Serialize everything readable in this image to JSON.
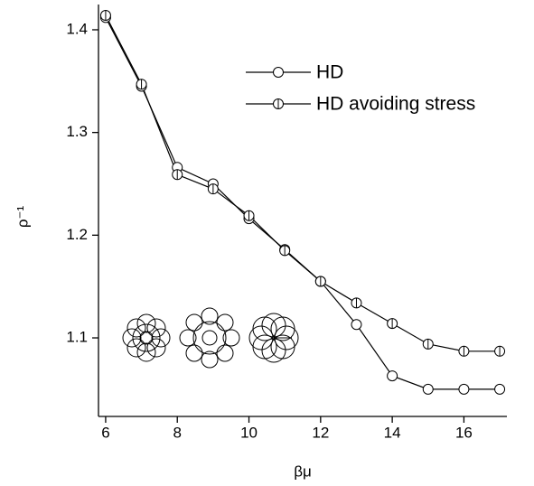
{
  "chart_data": {
    "type": "line",
    "xlabel": "βμ",
    "ylabel": "ρ⁻¹",
    "x": [
      6,
      7,
      8,
      9,
      10,
      11,
      12,
      13,
      14,
      15,
      16,
      17
    ],
    "series": [
      {
        "name": "HD",
        "color": "#000000",
        "marker": "circle",
        "values": [
          1.412,
          1.345,
          1.266,
          1.25,
          1.216,
          1.186,
          1.155,
          1.113,
          1.063,
          1.05,
          1.05,
          1.05
        ]
      },
      {
        "name": "HD avoiding stress",
        "color": "#000000",
        "marker": "circle-bar",
        "values": [
          1.414,
          1.347,
          1.259,
          1.245,
          1.219,
          1.185,
          1.155,
          1.134,
          1.114,
          1.094,
          1.087,
          1.087
        ]
      }
    ],
    "xlim": [
      5.8,
      17.2
    ],
    "xticks": [
      6,
      8,
      10,
      12,
      14,
      16
    ],
    "ylim": [
      1.0235,
      1.4246
    ],
    "yticks": [
      1.1,
      1.2,
      1.3,
      1.4
    ],
    "grid": false,
    "legend": "upper right"
  }
}
